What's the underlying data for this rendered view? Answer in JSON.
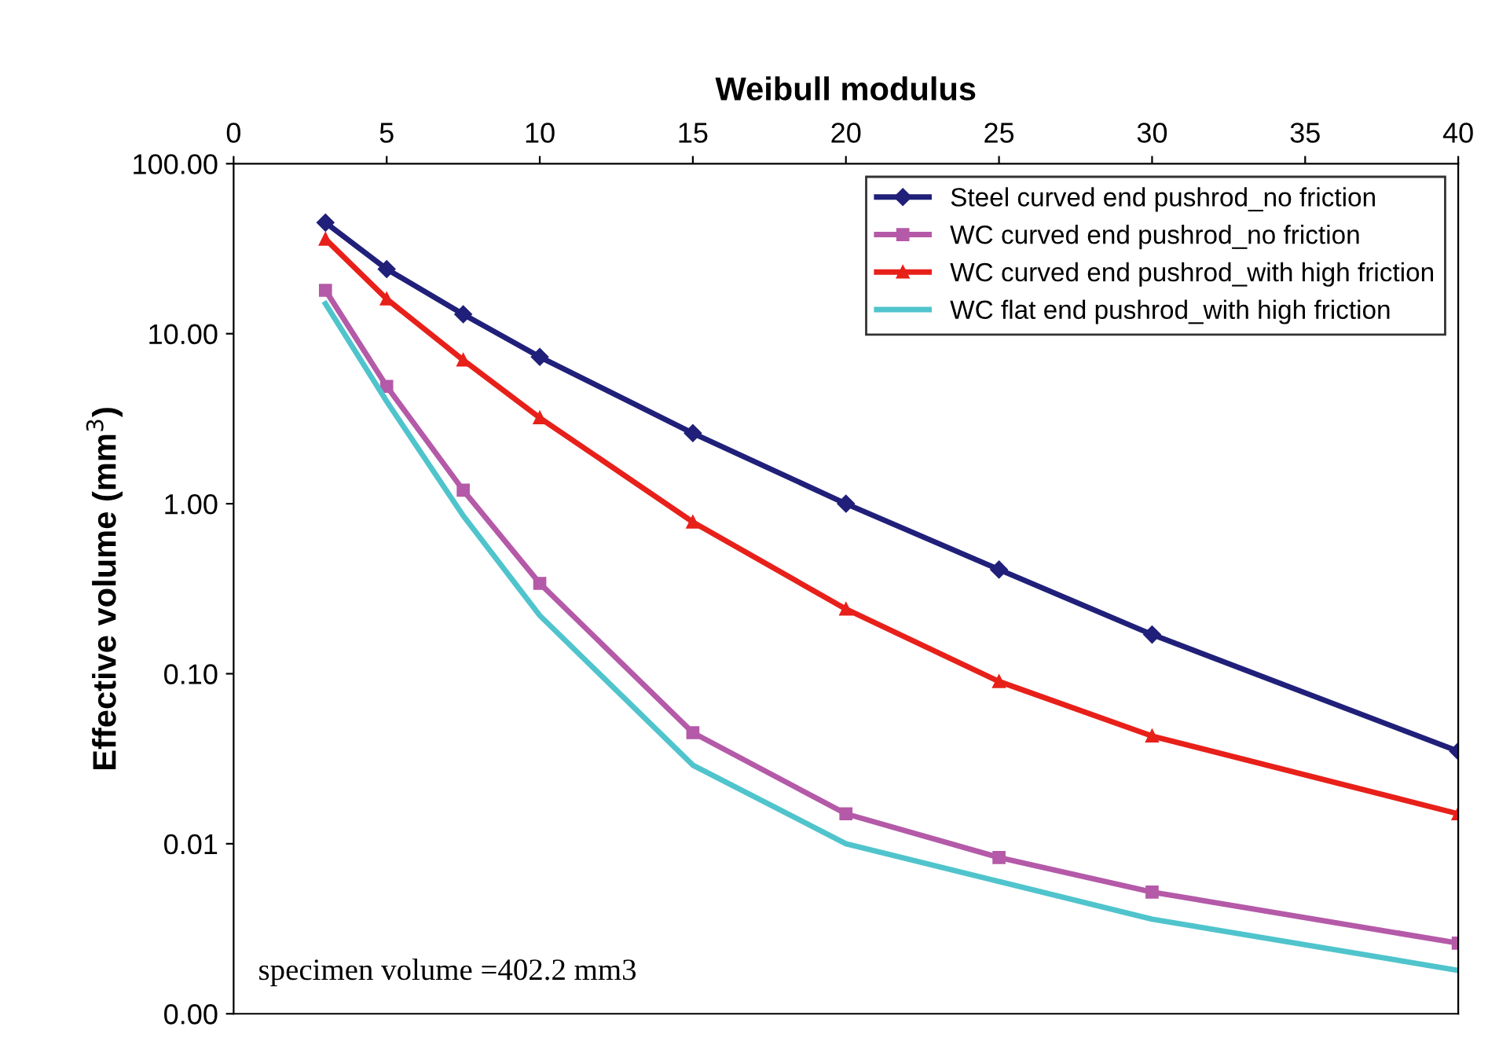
{
  "chart_data": {
    "type": "line",
    "xlabel": "Weibull modulus",
    "ylabel": "Effective volume (mm$^{3}$)",
    "x": [
      3,
      5,
      7.5,
      10,
      15,
      20,
      25,
      30,
      40
    ],
    "series": [
      {
        "name": "Steel curved end pushrod_no friction",
        "color": "#20207a",
        "marker": "diamond",
        "values": [
          45,
          24,
          13,
          7.3,
          2.6,
          1.0,
          0.41,
          0.17,
          0.035
        ]
      },
      {
        "name": "WC curved end pushrod_no friction",
        "color": "#b45aa8",
        "marker": "square",
        "values": [
          18,
          4.9,
          1.2,
          0.34,
          0.045,
          0.015,
          0.0083,
          0.0052,
          0.0026
        ]
      },
      {
        "name": "WC curved end pushrod_with high friction",
        "color": "#e8201a",
        "marker": "triangle",
        "values": [
          36,
          16,
          7.0,
          3.2,
          0.78,
          0.24,
          0.09,
          0.043,
          0.015
        ]
      },
      {
        "name": "WC flat end pushrod_with high friction",
        "color": "#50c4cc",
        "marker": "none",
        "values": [
          15,
          4.0,
          0.85,
          0.22,
          0.029,
          0.01,
          0.006,
          0.0036,
          0.0018
        ]
      }
    ],
    "log": "y",
    "xlim": [
      0,
      40
    ],
    "xticks": [
      0,
      5,
      10,
      15,
      20,
      25,
      30,
      35,
      40
    ],
    "ylim": [
      0.001,
      100
    ],
    "yticks": [
      {
        "value": 0.001,
        "label": "0.00"
      },
      {
        "value": 0.01,
        "label": "0.01"
      },
      {
        "value": 0.1,
        "label": "0.10"
      },
      {
        "value": 1,
        "label": "1.00"
      },
      {
        "value": 10,
        "label": "10.00"
      },
      {
        "value": 100,
        "label": "100.00"
      }
    ],
    "grid": false,
    "legend": "top right",
    "line_style": "solid",
    "annotations": [
      "specimen volume =402.2 mm3"
    ]
  }
}
